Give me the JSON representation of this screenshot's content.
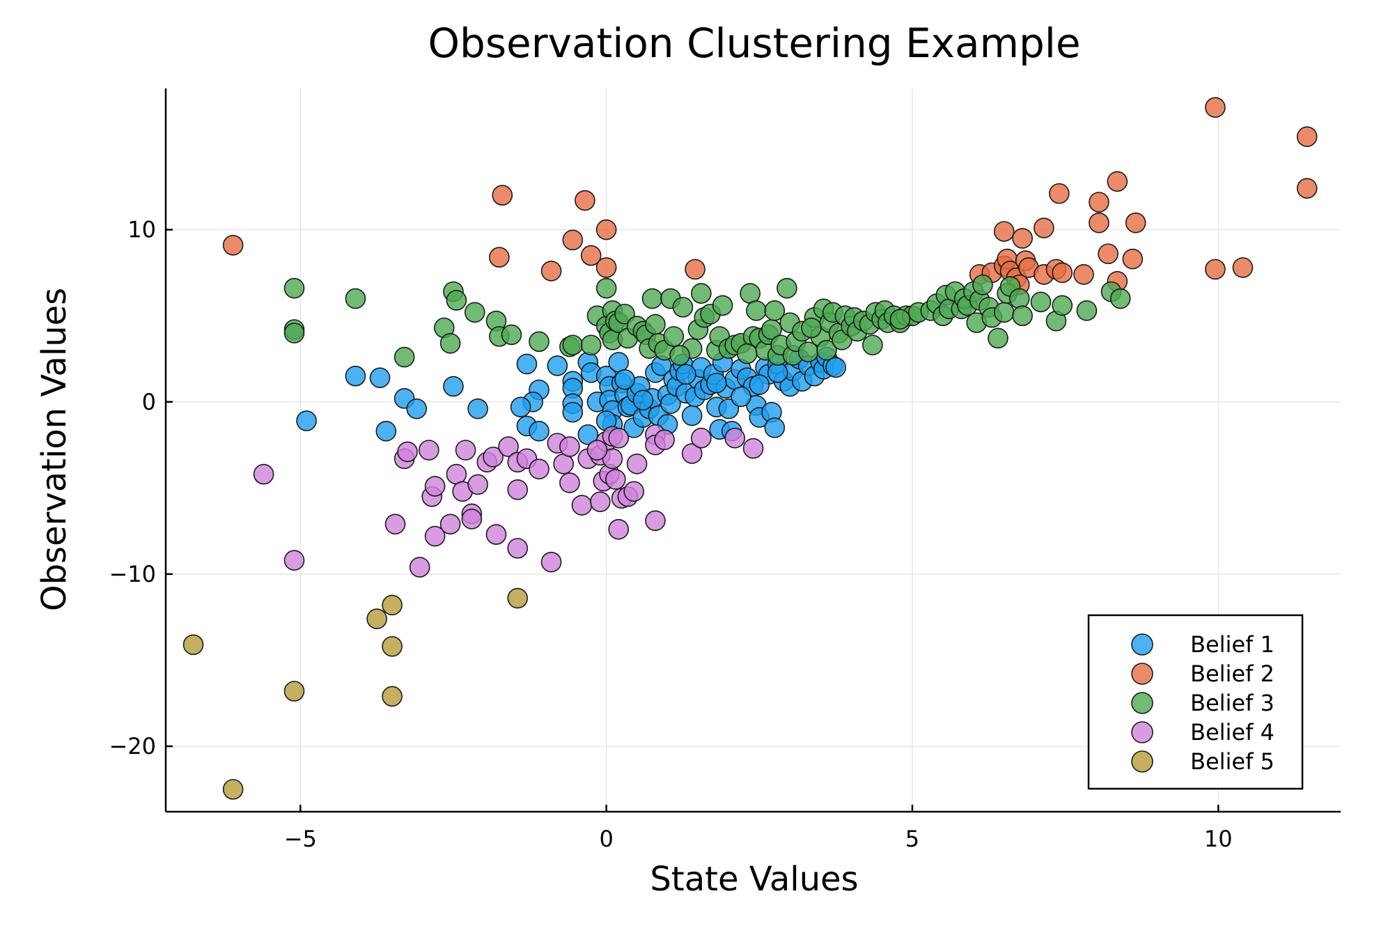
{
  "chart_data": {
    "type": "scatter",
    "title": "Observation Clustering Example",
    "xlabel": "State Values",
    "ylabel": "Observation Values",
    "xlim": [
      -7.2,
      12
    ],
    "ylim": [
      -23.8,
      18.2
    ],
    "xticks": [
      -5,
      0,
      5,
      10
    ],
    "yticks": [
      -20,
      -10,
      0,
      10
    ],
    "xtick_labels": [
      "−5",
      "0",
      "5",
      "10"
    ],
    "ytick_labels": [
      "−20",
      "−10",
      "0",
      "10"
    ],
    "grid": true,
    "legend_position": "bottom-right",
    "series": [
      {
        "name": "Belief 1",
        "color": "#1f9ff0",
        "points": [
          [
            -4.1,
            1.5
          ],
          [
            -3.7,
            1.4
          ],
          [
            -3.6,
            -1.7
          ],
          [
            -4.9,
            -1.1
          ],
          [
            -3.3,
            0.2
          ],
          [
            -3.1,
            -0.4
          ],
          [
            -2.5,
            0.9
          ],
          [
            -2.1,
            -0.4
          ],
          [
            -1.3,
            2.2
          ],
          [
            -1.1,
            0.7
          ],
          [
            -1.2,
            0.0
          ],
          [
            -1.4,
            -0.3
          ],
          [
            -1.3,
            -1.4
          ],
          [
            -1.1,
            -1.7
          ],
          [
            -0.8,
            2.1
          ],
          [
            -0.55,
            1.2
          ],
          [
            -0.55,
            0.8
          ],
          [
            -0.55,
            -0.1
          ],
          [
            -0.55,
            -0.6
          ],
          [
            -0.3,
            2.3
          ],
          [
            -0.25,
            1.7
          ],
          [
            -0.3,
            -1.9
          ],
          [
            -0.15,
            0.0
          ],
          [
            0.0,
            1.5
          ],
          [
            0.05,
            0.9
          ],
          [
            0.05,
            0.1
          ],
          [
            0.1,
            -0.5
          ],
          [
            0.1,
            -1.3
          ],
          [
            0.2,
            2.3
          ],
          [
            0.25,
            1.1
          ],
          [
            0.3,
            0.4
          ],
          [
            0.35,
            -0.3
          ],
          [
            0.4,
            -0.2
          ],
          [
            0.45,
            -1.5
          ],
          [
            0.5,
            0.5
          ],
          [
            0.55,
            0.9
          ],
          [
            0.6,
            -0.9
          ],
          [
            0.7,
            -0.4
          ],
          [
            0.75,
            0.2
          ],
          [
            0.8,
            1.7
          ],
          [
            0.85,
            -0.8
          ],
          [
            0.9,
            2.1
          ],
          [
            1.0,
            0.4
          ],
          [
            1.05,
            -0.1
          ],
          [
            1.1,
            1.3
          ],
          [
            1.15,
            0.9
          ],
          [
            1.2,
            1.8
          ],
          [
            1.25,
            2.2
          ],
          [
            1.3,
            0.5
          ],
          [
            1.4,
            -0.8
          ],
          [
            1.45,
            0.3
          ],
          [
            1.5,
            1.3
          ],
          [
            1.55,
            2.0
          ],
          [
            1.6,
            0.7
          ],
          [
            1.7,
            1.0
          ],
          [
            1.75,
            1.6
          ],
          [
            1.8,
            -0.3
          ],
          [
            1.85,
            -1.6
          ],
          [
            1.9,
            2.3
          ],
          [
            1.95,
            0.8
          ],
          [
            2.0,
            -0.4
          ],
          [
            2.05,
            -1.7
          ],
          [
            2.1,
            1.3
          ],
          [
            2.2,
            1.9
          ],
          [
            2.3,
            1.4
          ],
          [
            2.4,
            0.9
          ],
          [
            2.45,
            -0.2
          ],
          [
            2.5,
            -0.9
          ],
          [
            2.6,
            2.0
          ],
          [
            2.65,
            1.6
          ],
          [
            2.7,
            -0.6
          ],
          [
            2.75,
            -1.5
          ],
          [
            2.8,
            2.2
          ],
          [
            2.9,
            1.2
          ],
          [
            3.0,
            0.9
          ],
          [
            3.05,
            1.8
          ],
          [
            3.15,
            2.5
          ],
          [
            3.2,
            1.2
          ],
          [
            3.3,
            2.1
          ],
          [
            3.4,
            1.5
          ],
          [
            3.5,
            2.3
          ],
          [
            3.55,
            1.9
          ],
          [
            3.6,
            2.6
          ],
          [
            3.7,
            2.1
          ],
          [
            3.75,
            2.0
          ],
          [
            0.0,
            -1.1
          ],
          [
            0.6,
            0.1
          ],
          [
            1.0,
            -1.3
          ],
          [
            1.3,
            1.6
          ],
          [
            2.2,
            0.3
          ],
          [
            0.3,
            1.3
          ],
          [
            1.8,
            1.1
          ],
          [
            2.5,
            1.0
          ],
          [
            2.8,
            1.7
          ]
        ]
      },
      {
        "name": "Belief 2",
        "color": "#e66e43",
        "points": [
          [
            -6.1,
            9.1
          ],
          [
            -1.7,
            12.0
          ],
          [
            -1.75,
            8.4
          ],
          [
            -0.35,
            11.7
          ],
          [
            -0.55,
            9.4
          ],
          [
            -0.9,
            7.6
          ],
          [
            -0.25,
            8.5
          ],
          [
            0.0,
            10.0
          ],
          [
            0.0,
            7.8
          ],
          [
            1.45,
            7.7
          ],
          [
            6.1,
            7.4
          ],
          [
            6.3,
            7.5
          ],
          [
            6.5,
            7.9
          ],
          [
            6.5,
            9.9
          ],
          [
            6.55,
            8.3
          ],
          [
            6.6,
            7.6
          ],
          [
            6.7,
            7.2
          ],
          [
            6.8,
            9.5
          ],
          [
            6.85,
            8.2
          ],
          [
            6.9,
            7.8
          ],
          [
            6.75,
            6.8
          ],
          [
            7.15,
            10.1
          ],
          [
            7.15,
            7.4
          ],
          [
            7.35,
            7.7
          ],
          [
            7.4,
            12.1
          ],
          [
            7.45,
            7.5
          ],
          [
            7.8,
            7.4
          ],
          [
            8.05,
            11.6
          ],
          [
            8.05,
            10.4
          ],
          [
            8.2,
            8.6
          ],
          [
            8.35,
            12.8
          ],
          [
            8.35,
            7.0
          ],
          [
            8.6,
            8.3
          ],
          [
            8.65,
            10.4
          ],
          [
            9.95,
            17.1
          ],
          [
            9.95,
            7.7
          ],
          [
            10.4,
            7.8
          ],
          [
            11.45,
            15.4
          ],
          [
            11.45,
            12.4
          ]
        ]
      },
      {
        "name": "Belief 3",
        "color": "#4daa52",
        "points": [
          [
            -5.1,
            6.6
          ],
          [
            -5.1,
            4.2
          ],
          [
            -5.1,
            4.0
          ],
          [
            -4.1,
            6.0
          ],
          [
            -3.3,
            2.6
          ],
          [
            -2.65,
            4.3
          ],
          [
            -2.55,
            3.4
          ],
          [
            -2.5,
            6.4
          ],
          [
            -2.45,
            5.9
          ],
          [
            -2.15,
            5.2
          ],
          [
            -1.8,
            4.7
          ],
          [
            -1.75,
            3.8
          ],
          [
            -1.55,
            3.9
          ],
          [
            -1.1,
            3.5
          ],
          [
            -0.6,
            3.2
          ],
          [
            -0.55,
            3.3
          ],
          [
            -0.25,
            3.3
          ],
          [
            -0.15,
            5.0
          ],
          [
            0.0,
            6.6
          ],
          [
            0.0,
            4.4
          ],
          [
            0.05,
            4.0
          ],
          [
            0.1,
            3.6
          ],
          [
            0.1,
            5.3
          ],
          [
            0.15,
            4.7
          ],
          [
            0.2,
            4.6
          ],
          [
            0.3,
            5.1
          ],
          [
            0.35,
            3.7
          ],
          [
            0.5,
            4.4
          ],
          [
            0.6,
            4.1
          ],
          [
            0.65,
            3.9
          ],
          [
            0.7,
            3.1
          ],
          [
            0.75,
            6.0
          ],
          [
            0.8,
            4.5
          ],
          [
            0.85,
            3.4
          ],
          [
            0.95,
            3.0
          ],
          [
            1.05,
            6.0
          ],
          [
            1.1,
            3.8
          ],
          [
            1.25,
            5.5
          ],
          [
            1.4,
            3.1
          ],
          [
            1.5,
            4.2
          ],
          [
            1.55,
            6.3
          ],
          [
            1.6,
            4.9
          ],
          [
            1.7,
            5.1
          ],
          [
            1.8,
            3.0
          ],
          [
            1.85,
            3.8
          ],
          [
            1.9,
            5.6
          ],
          [
            2.0,
            3.1
          ],
          [
            2.1,
            3.3
          ],
          [
            2.2,
            3.4
          ],
          [
            2.35,
            6.3
          ],
          [
            2.4,
            3.8
          ],
          [
            2.45,
            5.3
          ],
          [
            2.5,
            3.7
          ],
          [
            2.6,
            3.0
          ],
          [
            2.65,
            3.9
          ],
          [
            2.7,
            4.2
          ],
          [
            2.75,
            5.3
          ],
          [
            2.8,
            2.7
          ],
          [
            2.85,
            3.3
          ],
          [
            2.95,
            6.6
          ],
          [
            3.0,
            4.6
          ],
          [
            3.05,
            2.7
          ],
          [
            3.1,
            3.5
          ],
          [
            3.2,
            4.1
          ],
          [
            3.3,
            2.9
          ],
          [
            3.4,
            4.9
          ],
          [
            3.5,
            3.8
          ],
          [
            3.55,
            5.4
          ],
          [
            3.6,
            3.0
          ],
          [
            3.65,
            4.6
          ],
          [
            3.7,
            5.2
          ],
          [
            3.8,
            4.0
          ],
          [
            3.85,
            3.6
          ],
          [
            3.9,
            5.0
          ],
          [
            4.0,
            4.4
          ],
          [
            4.05,
            4.9
          ],
          [
            4.1,
            4.1
          ],
          [
            4.2,
            4.7
          ],
          [
            4.3,
            4.5
          ],
          [
            4.35,
            3.3
          ],
          [
            4.4,
            5.2
          ],
          [
            4.5,
            4.8
          ],
          [
            4.55,
            5.3
          ],
          [
            4.6,
            4.6
          ],
          [
            4.7,
            5.0
          ],
          [
            4.8,
            4.6
          ],
          [
            4.9,
            5.0
          ],
          [
            5.0,
            5.0
          ],
          [
            5.1,
            5.2
          ],
          [
            5.3,
            5.3
          ],
          [
            5.4,
            5.7
          ],
          [
            5.5,
            5.0
          ],
          [
            5.55,
            6.2
          ],
          [
            5.6,
            5.4
          ],
          [
            5.7,
            6.4
          ],
          [
            5.8,
            5.4
          ],
          [
            5.85,
            6.0
          ],
          [
            5.9,
            5.6
          ],
          [
            6.0,
            6.4
          ],
          [
            6.05,
            4.6
          ],
          [
            6.1,
            5.9
          ],
          [
            6.15,
            6.8
          ],
          [
            6.25,
            5.5
          ],
          [
            6.3,
            4.9
          ],
          [
            6.4,
            3.7
          ],
          [
            6.5,
            5.2
          ],
          [
            6.55,
            6.3
          ],
          [
            6.6,
            6.7
          ],
          [
            6.75,
            6.0
          ],
          [
            6.8,
            5.0
          ],
          [
            7.1,
            5.8
          ],
          [
            7.35,
            4.7
          ],
          [
            7.45,
            5.6
          ],
          [
            7.85,
            5.3
          ],
          [
            8.25,
            6.4
          ],
          [
            8.4,
            6.0
          ],
          [
            2.3,
            2.8
          ],
          [
            1.2,
            2.7
          ],
          [
            3.35,
            4.3
          ],
          [
            4.8,
            4.8
          ]
        ]
      },
      {
        "name": "Belief 4",
        "color": "#d083dc",
        "points": [
          [
            -5.6,
            -4.2
          ],
          [
            -5.1,
            -9.2
          ],
          [
            -3.45,
            -7.1
          ],
          [
            -3.3,
            -3.3
          ],
          [
            -3.25,
            -2.9
          ],
          [
            -3.05,
            -9.6
          ],
          [
            -2.9,
            -2.8
          ],
          [
            -2.85,
            -5.5
          ],
          [
            -2.8,
            -7.8
          ],
          [
            -2.8,
            -4.9
          ],
          [
            -2.55,
            -7.1
          ],
          [
            -2.45,
            -4.2
          ],
          [
            -2.35,
            -5.2
          ],
          [
            -2.3,
            -2.8
          ],
          [
            -2.2,
            -6.5
          ],
          [
            -2.2,
            -6.8
          ],
          [
            -2.1,
            -4.8
          ],
          [
            -1.95,
            -3.5
          ],
          [
            -1.85,
            -3.2
          ],
          [
            -1.8,
            -7.7
          ],
          [
            -1.6,
            -2.6
          ],
          [
            -1.45,
            -8.5
          ],
          [
            -1.45,
            -3.5
          ],
          [
            -1.45,
            -5.1
          ],
          [
            -1.3,
            -3.3
          ],
          [
            -1.1,
            -3.9
          ],
          [
            -0.9,
            -9.3
          ],
          [
            -0.8,
            -2.4
          ],
          [
            -0.7,
            -3.6
          ],
          [
            -0.6,
            -2.6
          ],
          [
            -0.6,
            -4.7
          ],
          [
            -0.4,
            -6.0
          ],
          [
            -0.3,
            -3.3
          ],
          [
            -0.1,
            -3.1
          ],
          [
            -0.1,
            -5.8
          ],
          [
            -0.05,
            -4.6
          ],
          [
            0.0,
            -2.3
          ],
          [
            0.05,
            -4.2
          ],
          [
            0.1,
            -2.0
          ],
          [
            0.1,
            -3.3
          ],
          [
            0.15,
            -4.5
          ],
          [
            0.2,
            -2.1
          ],
          [
            0.2,
            -7.4
          ],
          [
            0.25,
            -5.6
          ],
          [
            0.35,
            -5.5
          ],
          [
            0.45,
            -5.2
          ],
          [
            0.8,
            -1.9
          ],
          [
            0.8,
            -2.5
          ],
          [
            0.8,
            -6.9
          ],
          [
            0.95,
            -2.2
          ],
          [
            1.4,
            -3.0
          ],
          [
            1.55,
            -2.1
          ],
          [
            2.1,
            -2.1
          ],
          [
            2.4,
            -2.7
          ],
          [
            0.5,
            -3.6
          ],
          [
            -0.15,
            -2.8
          ]
        ]
      },
      {
        "name": "Belief 5",
        "color": "#b79b3a",
        "points": [
          [
            -6.75,
            -14.1
          ],
          [
            -6.1,
            -22.5
          ],
          [
            -5.1,
            -16.8
          ],
          [
            -3.75,
            -12.6
          ],
          [
            -3.5,
            -11.8
          ],
          [
            -3.5,
            -14.2
          ],
          [
            -3.5,
            -17.1
          ],
          [
            -1.45,
            -11.4
          ]
        ]
      }
    ]
  }
}
